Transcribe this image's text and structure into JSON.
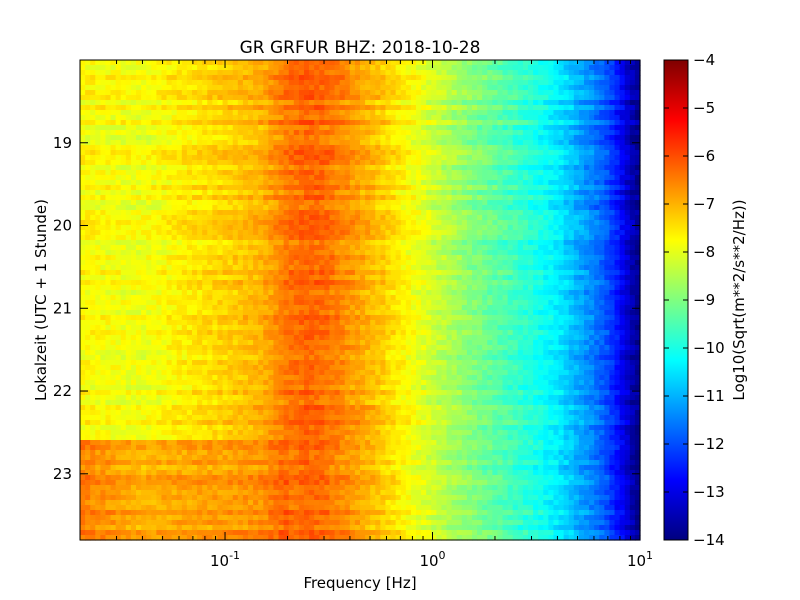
{
  "chart_data": {
    "type": "heatmap",
    "title": "GR GRFUR BHZ: 2018-10-28",
    "xlabel": "Frequency [Hz]",
    "ylabel": "Lokalzeit (UTC + 1 Stunde)",
    "xscale": "log",
    "xlim": [
      0.02,
      10
    ],
    "ylim": [
      18.0,
      23.8
    ],
    "y_inverted": true,
    "x_ticks": [
      {
        "value": 0.1,
        "base": "10",
        "exp": "-1"
      },
      {
        "value": 1,
        "base": "10",
        "exp": "0"
      },
      {
        "value": 10,
        "base": "10",
        "exp": "1"
      }
    ],
    "y_ticks": [
      {
        "value": 19,
        "label": "19"
      },
      {
        "value": 20,
        "label": "20"
      },
      {
        "value": 21,
        "label": "21"
      },
      {
        "value": 22,
        "label": "22"
      },
      {
        "value": 23,
        "label": "23"
      }
    ],
    "colorbar": {
      "label": "Log10(Sqrt(m**2/s**2/Hz))",
      "vmin": -14,
      "vmax": -4,
      "colormap": "jet",
      "ticks": [
        {
          "value": -4,
          "label": "−4"
        },
        {
          "value": -5,
          "label": "−5"
        },
        {
          "value": -6,
          "label": "−6"
        },
        {
          "value": -7,
          "label": "−7"
        },
        {
          "value": -8,
          "label": "−8"
        },
        {
          "value": -9,
          "label": "−9"
        },
        {
          "value": -10,
          "label": "−10"
        },
        {
          "value": -11,
          "label": "−11"
        },
        {
          "value": -12,
          "label": "−12"
        },
        {
          "value": -13,
          "label": "−13"
        },
        {
          "value": -14,
          "label": "−14"
        }
      ]
    },
    "spectrum_profile": {
      "frequency_hz": [
        0.02,
        0.04,
        0.06,
        0.1,
        0.15,
        0.2,
        0.25,
        0.3,
        0.4,
        0.5,
        0.7,
        1,
        1.5,
        2,
        3,
        4,
        5,
        6,
        7,
        8,
        9,
        10
      ],
      "amplitude": [
        -7.7,
        -7.9,
        -7.6,
        -7.3,
        -7.0,
        -6.4,
        -6.2,
        -6.3,
        -6.7,
        -7.0,
        -7.6,
        -8.2,
        -8.9,
        -9.3,
        -9.9,
        -10.4,
        -11.0,
        -11.5,
        -12.0,
        -12.7,
        -13.4,
        -13.9
      ]
    },
    "event_after_hour": 22.6,
    "event_low_freq_boost": 1.0
  }
}
